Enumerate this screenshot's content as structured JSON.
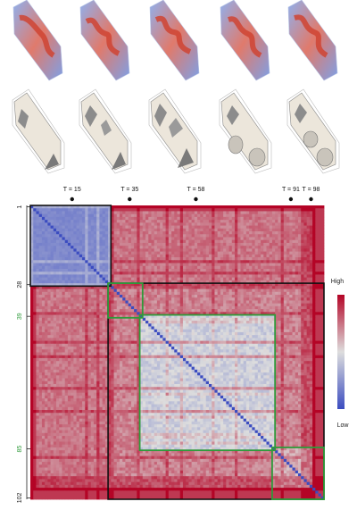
{
  "chart_data": {
    "type": "heatmap",
    "n": 102,
    "timesteps": [
      {
        "label": "T = 15",
        "t": 15
      },
      {
        "label": "T = 35",
        "t": 35
      },
      {
        "label": "T = 58",
        "t": 58
      },
      {
        "label": "T = 91",
        "t": 91
      },
      {
        "label": "T = 98",
        "t": 98
      }
    ],
    "row_ticks": [
      {
        "label": "1",
        "value": 1,
        "color": "#222222"
      },
      {
        "label": "28",
        "value": 28,
        "color": "#222222"
      },
      {
        "label": "39",
        "value": 39,
        "color": "#2e9a3a"
      },
      {
        "label": "85",
        "value": 85,
        "color": "#2e9a3a"
      },
      {
        "label": "102",
        "value": 102,
        "color": "#222222"
      }
    ],
    "black_blocks": [
      [
        1,
        28
      ],
      [
        28,
        102
      ]
    ],
    "green_blocks": [
      [
        39,
        85
      ],
      [
        85,
        102
      ],
      [
        28,
        39
      ]
    ],
    "legend": {
      "high": "High",
      "low": "Low"
    },
    "colors": {
      "high": "#b40426",
      "mid": "#dddddd",
      "low": "#3b4cc0",
      "black_box": "#111111",
      "green_box": "#2e9a3a"
    }
  }
}
